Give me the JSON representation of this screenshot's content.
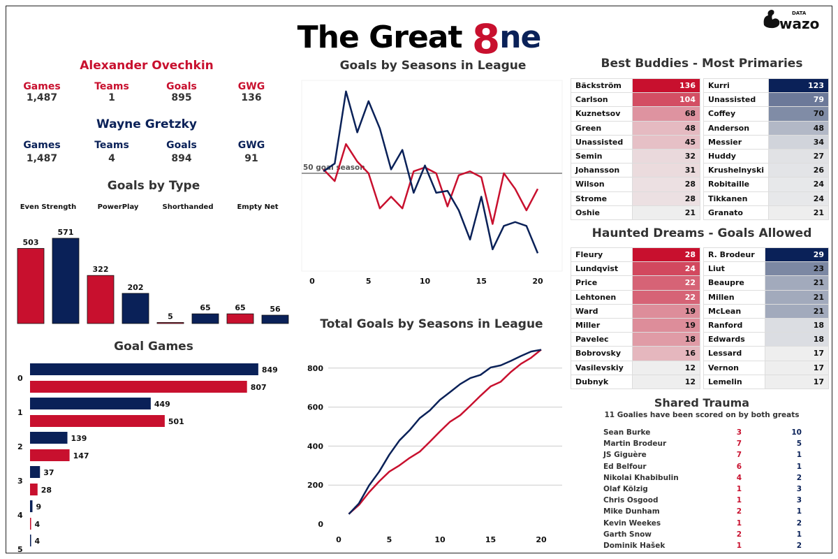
{
  "header": {
    "title_prefix": "The Great ",
    "title_eight": "8",
    "title_suffix": "ne",
    "logo_text": "DATA wazo"
  },
  "colors": {
    "ovechkin": "#c8102e",
    "gretzky": "#0a2158",
    "neutral": "#eeeeee"
  },
  "ovechkin": {
    "name": "Alexander Ovechkin",
    "stats": [
      {
        "label": "Games",
        "value": "1,487"
      },
      {
        "label": "Teams",
        "value": "1"
      },
      {
        "label": "Goals",
        "value": "895"
      },
      {
        "label": "GWG",
        "value": "136"
      }
    ]
  },
  "gretzky": {
    "name": "Wayne Gretzky",
    "stats": [
      {
        "label": "Games",
        "value": "1,487"
      },
      {
        "label": "Teams",
        "value": "4"
      },
      {
        "label": "Goals",
        "value": "894"
      },
      {
        "label": "GWG",
        "value": "91"
      }
    ]
  },
  "chart_data": [
    {
      "type": "bar",
      "title": "Goals by Type",
      "categories": [
        "Even Strength",
        "PowerPlay",
        "Shorthanded",
        "Empty Net"
      ],
      "series": [
        {
          "values": [
            503,
            322,
            5,
            65
          ]
        },
        {
          "values": [
            571,
            202,
            65,
            56
          ]
        }
      ]
    },
    {
      "type": "bar",
      "orientation": "horizontal",
      "title": "Goal Games",
      "categories": [
        "0",
        "1",
        "2",
        "3",
        "4",
        "5"
      ],
      "series": [
        {
          "values": [
            849,
            449,
            139,
            37,
            9,
            4
          ]
        },
        {
          "values": [
            807,
            501,
            147,
            28,
            4,
            null
          ]
        }
      ]
    },
    {
      "type": "line",
      "title": "Goals by Seasons in League",
      "xlim": [
        0,
        21
      ],
      "ylim": [
        0,
        98
      ],
      "xticks": [
        0,
        5,
        10,
        15,
        20
      ],
      "annotation": {
        "y": 50,
        "label": "50 goal season"
      },
      "x": [
        1,
        2,
        3,
        4,
        5,
        6,
        7,
        8,
        9,
        10,
        11,
        12,
        13,
        14,
        15,
        16,
        17,
        18,
        19,
        20
      ],
      "series": [
        {
          "values": [
            52,
            46,
            65,
            56,
            50,
            32,
            38,
            32,
            51,
            53,
            50,
            33,
            49,
            51,
            48,
            24,
            50,
            42,
            31,
            42
          ]
        },
        {
          "values": [
            51,
            55,
            92,
            71,
            87,
            73,
            52,
            62,
            40,
            54,
            40,
            41,
            31,
            16,
            38,
            11,
            23,
            25,
            23,
            9
          ]
        }
      ]
    },
    {
      "type": "line",
      "title": "Total Goals by Seasons in League",
      "xlim": [
        0,
        22
      ],
      "ylim": [
        0,
        950
      ],
      "xticks": [
        0,
        5,
        10,
        15,
        20
      ],
      "yticks": [
        0,
        200,
        400,
        600,
        800
      ],
      "grid": true,
      "x": [
        1,
        2,
        3,
        4,
        5,
        6,
        7,
        8,
        9,
        10,
        11,
        12,
        13,
        14,
        15,
        16,
        17,
        18,
        19,
        20
      ],
      "series": [
        {
          "values": [
            52,
            98,
            163,
            219,
            269,
            301,
            339,
            371,
            422,
            475,
            525,
            558,
            607,
            658,
            706,
            730,
            780,
            822,
            853,
            895
          ]
        },
        {
          "values": [
            51,
            106,
            198,
            269,
            356,
            429,
            481,
            543,
            583,
            637,
            677,
            718,
            749,
            765,
            803,
            814,
            837,
            862,
            885,
            894
          ]
        }
      ]
    }
  ],
  "buddies": {
    "title": "Best Buddies - Most Primaries",
    "left": [
      [
        "Bäckström",
        136
      ],
      [
        "Carlson",
        104
      ],
      [
        "Kuznetsov",
        68
      ],
      [
        "Green",
        48
      ],
      [
        "Unassisted",
        45
      ],
      [
        "Semin",
        32
      ],
      [
        "Johansson",
        31
      ],
      [
        "Wilson",
        28
      ],
      [
        "Strome",
        28
      ],
      [
        "Oshie",
        21
      ]
    ],
    "right": [
      [
        "Kurri",
        123
      ],
      [
        "Unassisted",
        79
      ],
      [
        "Coffey",
        70
      ],
      [
        "Anderson",
        48
      ],
      [
        "Messier",
        34
      ],
      [
        "Huddy",
        27
      ],
      [
        "Krushelnyski",
        26
      ],
      [
        "Robitaille",
        24
      ],
      [
        "Tikkanen",
        24
      ],
      [
        "Granato",
        21
      ]
    ]
  },
  "haunted": {
    "title": "Haunted Dreams - Goals Allowed",
    "left": [
      [
        "Fleury",
        28
      ],
      [
        "Lundqvist",
        24
      ],
      [
        "Price",
        22
      ],
      [
        "Lehtonen",
        22
      ],
      [
        "Ward",
        19
      ],
      [
        "Miller",
        19
      ],
      [
        "Pavelec",
        18
      ],
      [
        "Bobrovsky",
        16
      ],
      [
        "Vasilevskiy",
        12
      ],
      [
        "Dubnyk",
        12
      ]
    ],
    "right": [
      [
        "R. Brodeur",
        29
      ],
      [
        "Liut",
        23
      ],
      [
        "Beaupre",
        21
      ],
      [
        "Millen",
        21
      ],
      [
        "McLean",
        21
      ],
      [
        "Ranford",
        18
      ],
      [
        "Edwards",
        18
      ],
      [
        "Lessard",
        17
      ],
      [
        "Vernon",
        17
      ],
      [
        "Lemelin",
        17
      ]
    ]
  },
  "trauma": {
    "title": "Shared Trauma",
    "subtitle": "11 Goalies have been scored on by both greats",
    "rows": [
      [
        "Sean Burke",
        3,
        10
      ],
      [
        "Martin Brodeur",
        7,
        5
      ],
      [
        "JS Giguère",
        7,
        1
      ],
      [
        "Ed Belfour",
        6,
        1
      ],
      [
        "Nikolai Khabibulin",
        4,
        2
      ],
      [
        "Olaf Kölzig",
        1,
        3
      ],
      [
        "Chris Osgood",
        1,
        3
      ],
      [
        "Mike Dunham",
        2,
        1
      ],
      [
        "Kevin Weekes",
        1,
        2
      ],
      [
        "Garth Snow",
        2,
        1
      ],
      [
        "Dominik Hašek",
        1,
        2
      ]
    ]
  }
}
